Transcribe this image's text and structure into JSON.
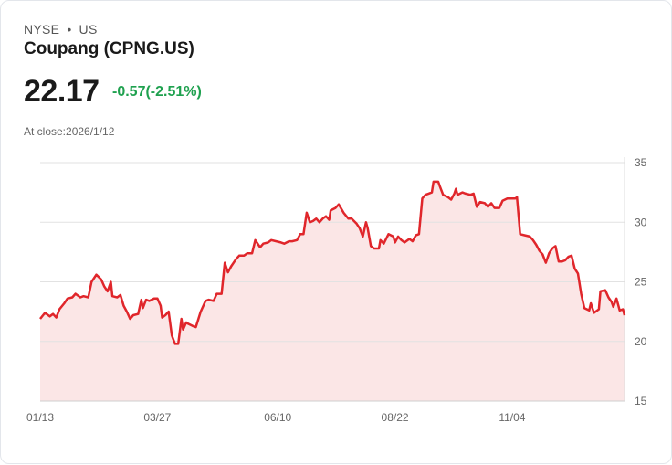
{
  "header": {
    "exchange": "NYSE",
    "separator": "•",
    "region": "US",
    "title": "Coupang (CPNG.US)",
    "price": "22.17",
    "change": "-0.57(-2.51%)",
    "at_close": "At close:2026/1/12"
  },
  "colors": {
    "line": "#e0262b",
    "fill": "#fbe6e6",
    "change": "#1fa14f",
    "grid": "#e2e2e2"
  },
  "chart_data": {
    "type": "area",
    "title": "Coupang (CPNG.US)",
    "xlabel": "",
    "ylabel": "",
    "x_unit": "days since 01/13",
    "xlim": [
      0,
      364
    ],
    "ylim": [
      15,
      35
    ],
    "y_ticks": [
      35,
      30,
      25,
      20,
      15
    ],
    "x_ticks": [
      {
        "day": 0,
        "label": "01/13"
      },
      {
        "day": 73,
        "label": "03/27"
      },
      {
        "day": 148,
        "label": "06/10"
      },
      {
        "day": 221,
        "label": "08/22"
      },
      {
        "day": 294,
        "label": "11/04"
      }
    ],
    "grid": true,
    "y_axis_position": "right",
    "x": [
      0,
      3,
      6,
      8,
      10,
      12,
      15,
      17,
      20,
      22,
      25,
      27,
      30,
      32,
      35,
      38,
      40,
      42,
      44,
      45,
      48,
      50,
      52,
      54,
      56,
      58,
      61,
      63,
      64,
      66,
      68,
      71,
      73,
      75,
      76,
      78,
      80,
      82,
      84,
      86,
      88,
      89,
      91,
      92,
      95,
      97,
      100,
      103,
      105,
      108,
      110,
      113,
      115,
      117,
      119,
      122,
      124,
      127,
      129,
      132,
      134,
      137,
      139,
      142,
      144,
      147,
      150,
      152,
      155,
      157,
      160,
      162,
      164,
      166,
      168,
      170,
      172,
      174,
      176,
      178,
      180,
      181,
      184,
      186,
      189,
      192,
      194,
      197,
      199,
      201,
      203,
      204,
      206,
      208,
      211,
      212,
      214,
      217,
      220,
      221,
      223,
      225,
      227,
      230,
      232,
      234,
      236,
      238,
      240,
      242,
      244,
      245,
      248,
      249,
      251,
      254,
      256,
      258,
      259,
      260,
      263,
      265,
      268,
      270,
      272,
      274,
      277,
      279,
      281,
      283,
      286,
      288,
      291,
      293,
      296,
      297,
      299,
      302,
      305,
      307,
      309,
      311,
      313,
      315,
      317,
      319,
      321,
      323,
      325,
      327,
      329,
      331,
      333,
      335,
      337,
      339,
      342,
      343,
      345,
      348,
      349,
      352,
      354,
      356,
      357,
      359,
      361,
      363,
      364
    ],
    "values": [
      21.9,
      22.4,
      22.1,
      22.3,
      22.0,
      22.7,
      23.2,
      23.6,
      23.7,
      24.0,
      23.7,
      23.8,
      23.7,
      25.0,
      25.6,
      25.2,
      24.6,
      24.2,
      25.0,
      23.8,
      23.7,
      23.9,
      23.0,
      22.5,
      21.9,
      22.2,
      22.3,
      23.5,
      22.8,
      23.5,
      23.4,
      23.6,
      23.6,
      23.0,
      22.0,
      22.2,
      22.5,
      20.5,
      19.8,
      19.8,
      21.9,
      21.0,
      21.6,
      21.5,
      21.3,
      21.2,
      22.5,
      23.4,
      23.5,
      23.4,
      24.0,
      24.0,
      26.6,
      25.8,
      26.3,
      26.9,
      27.2,
      27.2,
      27.4,
      27.4,
      28.5,
      27.9,
      28.2,
      28.3,
      28.5,
      28.4,
      28.3,
      28.2,
      28.4,
      28.4,
      28.5,
      29.0,
      29.0,
      30.8,
      30.0,
      30.1,
      30.3,
      30.0,
      30.3,
      30.5,
      30.2,
      31.0,
      31.2,
      31.5,
      30.8,
      30.3,
      30.3,
      29.9,
      29.5,
      28.8,
      30.0,
      29.5,
      28.0,
      27.8,
      27.8,
      28.5,
      28.2,
      29.0,
      28.8,
      28.3,
      28.8,
      28.5,
      28.3,
      28.6,
      28.4,
      28.9,
      29.0,
      32.0,
      32.3,
      32.4,
      32.5,
      33.4,
      33.4,
      33.0,
      32.3,
      32.1,
      31.9,
      32.4,
      32.8,
      32.3,
      32.5,
      32.4,
      32.3,
      32.4,
      31.3,
      31.7,
      31.6,
      31.3,
      31.6,
      31.2,
      31.2,
      31.8,
      32.0,
      32.0,
      32.0,
      32.1,
      29.0,
      28.9,
      28.8,
      28.5,
      28.1,
      27.6,
      27.3,
      26.6,
      27.4,
      27.8,
      28.0,
      26.7,
      26.7,
      26.8,
      27.1,
      27.2,
      26.1,
      25.7,
      24.0,
      22.8,
      22.6,
      23.2,
      22.4,
      22.7,
      24.2,
      24.3,
      23.7,
      23.3,
      22.9,
      23.6,
      22.6,
      22.7,
      22.2
    ]
  }
}
